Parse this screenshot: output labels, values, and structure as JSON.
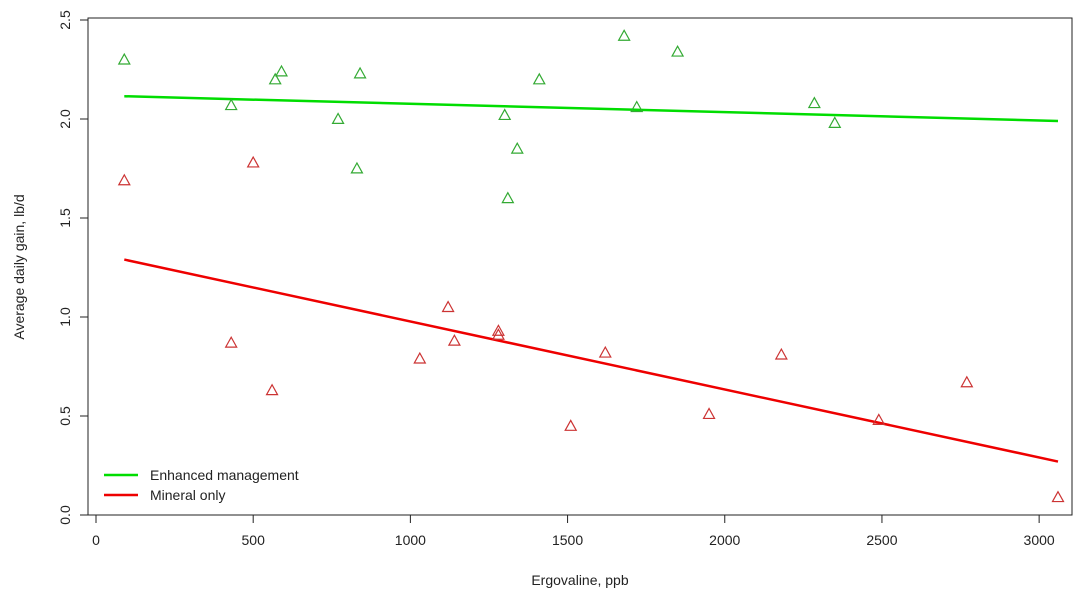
{
  "chart_data": {
    "type": "scatter",
    "title": "",
    "xlabel": "Ergovaline, ppb",
    "ylabel": "Average daily gain, lb/d",
    "xlim": [
      0,
      3100
    ],
    "ylim": [
      0,
      2.5
    ],
    "x_ticks": [
      0,
      500,
      1000,
      1500,
      2000,
      2500,
      3000
    ],
    "y_ticks": [
      0.0,
      0.5,
      1.0,
      1.5,
      2.0,
      2.5
    ],
    "x_tick_labels": [
      "0",
      "500",
      "1000",
      "1500",
      "2000",
      "2500",
      "3000"
    ],
    "y_tick_labels": [
      "0.0",
      "0.5",
      "1.0",
      "1.5",
      "2.0",
      "2.5"
    ],
    "grid": false,
    "legend_position": "bottom-left",
    "series": [
      {
        "name": "Enhanced management",
        "color": "#00dd00",
        "marker": "triangle-open",
        "points": [
          [
            90,
            2.3
          ],
          [
            430,
            2.07
          ],
          [
            570,
            2.2
          ],
          [
            590,
            2.24
          ],
          [
            770,
            2.0
          ],
          [
            830,
            1.75
          ],
          [
            840,
            2.23
          ],
          [
            1300,
            2.02
          ],
          [
            1310,
            1.6
          ],
          [
            1340,
            1.85
          ],
          [
            1410,
            2.2
          ],
          [
            1680,
            2.42
          ],
          [
            1720,
            2.06
          ],
          [
            1850,
            2.34
          ],
          [
            2285,
            2.08
          ],
          [
            2350,
            1.98
          ]
        ],
        "trend": [
          [
            90,
            2.115
          ],
          [
            3060,
            1.99
          ]
        ]
      },
      {
        "name": "Mineral only",
        "color": "#ee0000",
        "marker": "triangle-open",
        "points": [
          [
            90,
            1.69
          ],
          [
            430,
            0.87
          ],
          [
            500,
            1.78
          ],
          [
            560,
            0.63
          ],
          [
            1030,
            0.79
          ],
          [
            1120,
            1.05
          ],
          [
            1140,
            0.88
          ],
          [
            1280,
            0.93
          ],
          [
            1280,
            0.91
          ],
          [
            1510,
            0.45
          ],
          [
            1620,
            0.82
          ],
          [
            1950,
            0.51
          ],
          [
            2180,
            0.81
          ],
          [
            2490,
            0.48
          ],
          [
            2770,
            0.67
          ],
          [
            3060,
            0.09
          ]
        ],
        "trend": [
          [
            90,
            1.29
          ],
          [
            3060,
            0.27
          ]
        ]
      }
    ]
  }
}
